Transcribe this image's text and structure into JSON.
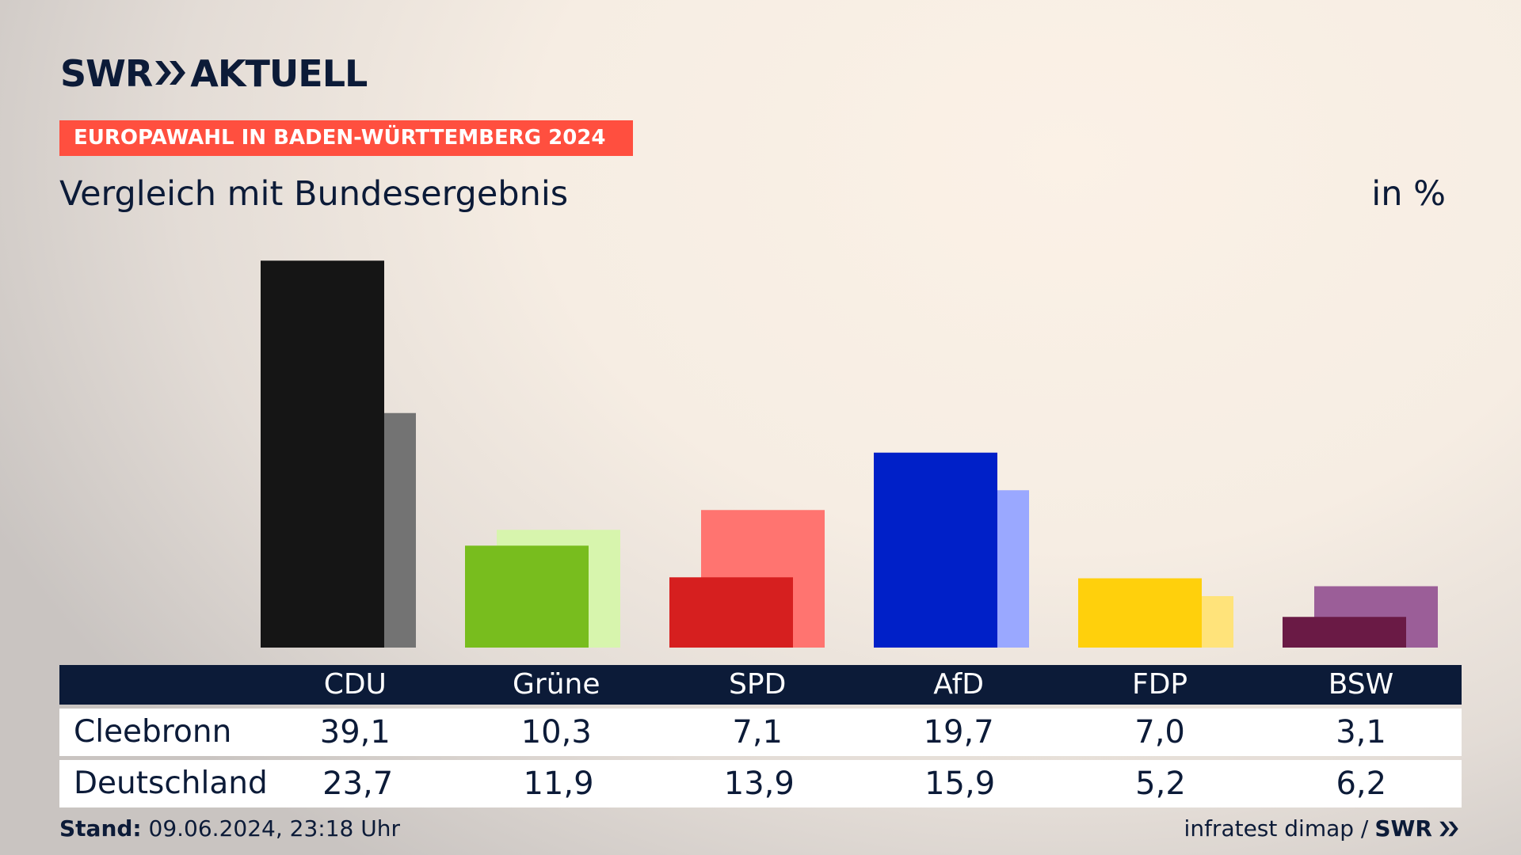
{
  "header": {
    "logo_text": "SWR",
    "logo_suffix": "AKTUELL",
    "banner": "EUROPAWAHL IN BADEN-WÜRTTEMBERG 2024",
    "subtitle": "Vergleich mit Bundesergebnis",
    "unit": "in %"
  },
  "chart_data": {
    "type": "bar",
    "categories": [
      "CDU",
      "Grüne",
      "SPD",
      "AfD",
      "FDP",
      "BSW"
    ],
    "series": [
      {
        "name": "Cleebronn",
        "values": [
          39.1,
          10.3,
          7.1,
          19.7,
          7.0,
          3.1
        ]
      },
      {
        "name": "Deutschland",
        "values": [
          23.7,
          11.9,
          13.9,
          15.9,
          5.2,
          6.2
        ]
      }
    ],
    "colors": {
      "primary": [
        "#151515",
        "#78bd1e",
        "#d61f1f",
        "#0020c8",
        "#ffd00c",
        "#6a1a45"
      ],
      "secondary": [
        "#737373",
        "#d7f5ad",
        "#ff7470",
        "#9aa8ff",
        "#ffe37a",
        "#9b5e98"
      ]
    }
  },
  "table": {
    "row_labels": [
      "Cleebronn",
      "Deutschland"
    ],
    "cleebronn": [
      "39,1",
      "10,3",
      "7,1",
      "19,7",
      "7,0",
      "3,1"
    ],
    "deutschland": [
      "23,7",
      "11,9",
      "13,9",
      "15,9",
      "5,2",
      "6,2"
    ]
  },
  "footer": {
    "stand_label": "Stand:",
    "stand_value": " 09.06.2024, 23:18 Uhr",
    "source": "infratest dimap /",
    "source_logo": "SWR"
  }
}
